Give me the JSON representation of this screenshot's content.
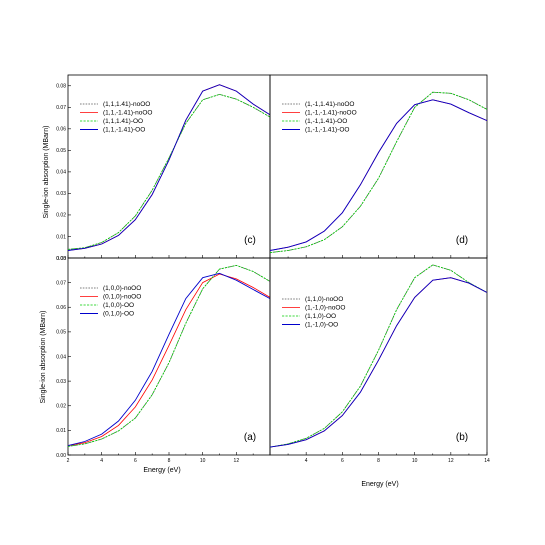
{
  "figure": {
    "ylabel": "Single-ion absorption (MBarn)",
    "xlabel": "Energy (eV)"
  },
  "series_colors": {
    "noOO_a": "#555555",
    "noOO_b": "#ff0000",
    "OO_a": "#00cc00",
    "OO_b": "#0000cc"
  },
  "chart_data": [
    {
      "id": "c",
      "panel_label": "(c)",
      "type": "line",
      "xlim": [
        2,
        14
      ],
      "ylim": [
        0,
        0.085
      ],
      "yticks": [
        "0.00",
        "0.01",
        "0.02",
        "0.03",
        "0.04",
        "0.05",
        "0.06",
        "0.07",
        "0.08"
      ],
      "xticks": [],
      "legend": "upper-left",
      "series": [
        {
          "name": "(1,1,1.41)-noOO",
          "x": [
            2,
            3,
            4,
            5,
            6,
            7,
            8,
            9,
            10,
            11,
            12,
            13,
            14
          ],
          "y": [
            0.004,
            0.0048,
            0.0072,
            0.0118,
            0.0195,
            0.0315,
            0.0465,
            0.0625,
            0.0735,
            0.076,
            0.0738,
            0.07,
            0.0655
          ]
        },
        {
          "name": "(1,1,-1.41)-noOO",
          "x": [
            2,
            3,
            4,
            5,
            6,
            7,
            8,
            9,
            10,
            11,
            12,
            13,
            14
          ],
          "y": [
            0.0035,
            0.0045,
            0.0065,
            0.0105,
            0.0178,
            0.0295,
            0.0455,
            0.064,
            0.0775,
            0.0805,
            0.0775,
            0.0715,
            0.0665
          ]
        },
        {
          "name": "(1,1,1.41)-OO",
          "x": [
            2,
            3,
            4,
            5,
            6,
            7,
            8,
            9,
            10,
            11,
            12,
            13,
            14
          ],
          "y": [
            0.004,
            0.0048,
            0.0072,
            0.0118,
            0.0195,
            0.0315,
            0.0465,
            0.0625,
            0.0735,
            0.076,
            0.0738,
            0.07,
            0.0655
          ]
        },
        {
          "name": "(1,1,-1.41)-OO",
          "x": [
            2,
            3,
            4,
            5,
            6,
            7,
            8,
            9,
            10,
            11,
            12,
            13,
            14
          ],
          "y": [
            0.0035,
            0.0045,
            0.0065,
            0.0105,
            0.0178,
            0.0295,
            0.0455,
            0.064,
            0.0775,
            0.0805,
            0.0775,
            0.0715,
            0.0665
          ]
        }
      ]
    },
    {
      "id": "d",
      "panel_label": "(d)",
      "type": "line",
      "xlim": [
        2,
        14
      ],
      "ylim": [
        0,
        0.085
      ],
      "yticks": [],
      "xticks": [],
      "legend": "upper-left",
      "series": [
        {
          "name": "(1,-1,1.41)-noOO",
          "x": [
            2,
            3,
            4,
            5,
            6,
            7,
            8,
            9,
            10,
            11,
            12,
            13,
            14
          ],
          "y": [
            0.0025,
            0.0035,
            0.0052,
            0.0085,
            0.0145,
            0.024,
            0.037,
            0.054,
            0.07,
            0.077,
            0.0765,
            0.0735,
            0.069
          ]
        },
        {
          "name": "(1,-1,-1.41)-noOO",
          "x": [
            2,
            3,
            4,
            5,
            6,
            7,
            8,
            9,
            10,
            11,
            12,
            13,
            14
          ],
          "y": [
            0.0035,
            0.005,
            0.0075,
            0.0125,
            0.021,
            0.034,
            0.049,
            0.0625,
            0.0712,
            0.0735,
            0.0715,
            0.0675,
            0.0638
          ]
        },
        {
          "name": "(1,-1,1.41)-OO",
          "x": [
            2,
            3,
            4,
            5,
            6,
            7,
            8,
            9,
            10,
            11,
            12,
            13,
            14
          ],
          "y": [
            0.0025,
            0.0035,
            0.0052,
            0.0085,
            0.0145,
            0.024,
            0.037,
            0.054,
            0.07,
            0.077,
            0.0765,
            0.0735,
            0.069
          ]
        },
        {
          "name": "(1,-1,-1.41)-OO",
          "x": [
            2,
            3,
            4,
            5,
            6,
            7,
            8,
            9,
            10,
            11,
            12,
            13,
            14
          ],
          "y": [
            0.0035,
            0.005,
            0.0075,
            0.0125,
            0.021,
            0.034,
            0.049,
            0.0625,
            0.0712,
            0.0735,
            0.0715,
            0.0675,
            0.0638
          ]
        }
      ]
    },
    {
      "id": "a",
      "panel_label": "(a)",
      "type": "line",
      "xlim": [
        2,
        14
      ],
      "ylim": [
        0,
        0.08
      ],
      "yticks": [
        "0.00",
        "0.01",
        "0.02",
        "0.03",
        "0.04",
        "0.05",
        "0.06",
        "0.07",
        "0.08"
      ],
      "xticks": [
        "2",
        "4",
        "6",
        "8",
        "10",
        "12"
      ],
      "legend": "upper-left",
      "series": [
        {
          "name": "(1,0,0)-noOO",
          "x": [
            2,
            3,
            4,
            5,
            6,
            7,
            8,
            9,
            10,
            11,
            12,
            13,
            14
          ],
          "y": [
            0.0035,
            0.0045,
            0.0065,
            0.0098,
            0.015,
            0.0245,
            0.0375,
            0.0535,
            0.0675,
            0.0755,
            0.077,
            0.0745,
            0.0705
          ]
        },
        {
          "name": "(0,1,0)-noOO",
          "x": [
            2,
            3,
            4,
            5,
            6,
            7,
            8,
            9,
            10,
            11,
            12,
            13,
            14
          ],
          "y": [
            0.0038,
            0.005,
            0.0075,
            0.012,
            0.0195,
            0.0305,
            0.0445,
            0.059,
            0.07,
            0.0735,
            0.0715,
            0.068,
            0.064
          ]
        },
        {
          "name": "(1,0,0)-OO",
          "x": [
            2,
            3,
            4,
            5,
            6,
            7,
            8,
            9,
            10,
            11,
            12,
            13,
            14
          ],
          "y": [
            0.0035,
            0.0045,
            0.0065,
            0.0098,
            0.015,
            0.0245,
            0.0375,
            0.0535,
            0.0675,
            0.0755,
            0.077,
            0.0745,
            0.0705
          ]
        },
        {
          "name": "(0,1,0)-OO",
          "x": [
            2,
            3,
            4,
            5,
            6,
            7,
            8,
            9,
            10,
            11,
            12,
            13,
            14
          ],
          "y": [
            0.0038,
            0.0055,
            0.0085,
            0.0138,
            0.0222,
            0.034,
            0.049,
            0.0635,
            0.072,
            0.0738,
            0.071,
            0.0672,
            0.0635
          ]
        }
      ]
    },
    {
      "id": "b",
      "panel_label": "(b)",
      "type": "line",
      "xlim": [
        2,
        14
      ],
      "ylim": [
        0,
        0.08
      ],
      "yticks": [],
      "xticks": [
        "4",
        "6",
        "8",
        "10",
        "12",
        "14"
      ],
      "legend": "upper-left",
      "series": [
        {
          "name": "(1,1,0)-noOO",
          "x": [
            2,
            3,
            4,
            5,
            6,
            7,
            8,
            9,
            10,
            11,
            12,
            13,
            14
          ],
          "y": [
            0.0032,
            0.0045,
            0.0068,
            0.0108,
            0.0175,
            0.028,
            0.0425,
            0.059,
            0.072,
            0.0772,
            0.075,
            0.07,
            0.066
          ]
        },
        {
          "name": "(1,-1,0)-noOO",
          "x": [
            2,
            3,
            4,
            5,
            6,
            7,
            8,
            9,
            10,
            11,
            12,
            13,
            14
          ],
          "y": [
            0.0032,
            0.0043,
            0.0062,
            0.0098,
            0.016,
            0.0255,
            0.0385,
            0.0525,
            0.064,
            0.071,
            0.072,
            0.0698,
            0.066
          ]
        },
        {
          "name": "(1,1,0)-OO",
          "x": [
            2,
            3,
            4,
            5,
            6,
            7,
            8,
            9,
            10,
            11,
            12,
            13,
            14
          ],
          "y": [
            0.0032,
            0.0045,
            0.0068,
            0.0108,
            0.0175,
            0.028,
            0.0425,
            0.059,
            0.072,
            0.0772,
            0.075,
            0.07,
            0.066
          ]
        },
        {
          "name": "(1,-1,0)-OO",
          "x": [
            2,
            3,
            4,
            5,
            6,
            7,
            8,
            9,
            10,
            11,
            12,
            13,
            14
          ],
          "y": [
            0.0032,
            0.0043,
            0.0062,
            0.0098,
            0.016,
            0.0255,
            0.0385,
            0.0525,
            0.064,
            0.071,
            0.072,
            0.0698,
            0.066
          ]
        }
      ]
    }
  ]
}
